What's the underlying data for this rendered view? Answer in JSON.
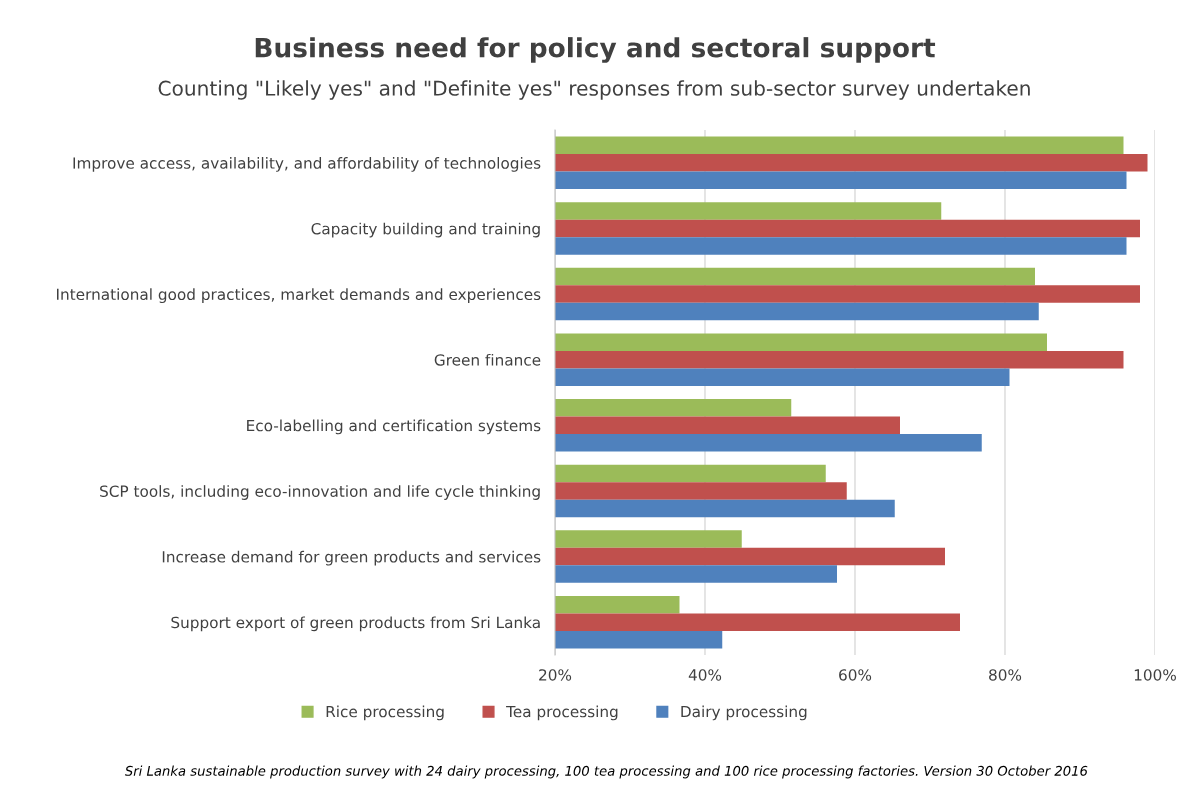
{
  "chart_data": {
    "type": "bar",
    "orientation": "horizontal",
    "title": "Business need for policy and sectoral support",
    "subtitle": "Counting \"Likely yes\" and \"Definite yes\" responses from sub-sector survey undertaken",
    "categories": [
      "Improve access, availability, and affordability of technologies",
      "Capacity building and training",
      "International good practices, market demands and experiences",
      "Green finance",
      "Eco-labelling and certification systems",
      "SCP tools, including eco-innovation and life cycle thinking",
      "Increase demand for green products and services",
      "Support export of green products from Sri Lanka"
    ],
    "series": [
      {
        "name": "Rice processing",
        "color": "#9bbb59",
        "values": [
          95.8,
          71.5,
          84.0,
          85.6,
          51.5,
          56.1,
          44.9,
          36.6
        ]
      },
      {
        "name": "Tea processing",
        "color": "#c0504d",
        "values": [
          99.0,
          98.0,
          98.0,
          95.8,
          66.0,
          58.9,
          72.0,
          74.0
        ]
      },
      {
        "name": "Dairy processing",
        "color": "#4f81bd",
        "values": [
          96.2,
          96.2,
          84.5,
          80.6,
          76.9,
          65.3,
          57.6,
          42.3
        ]
      }
    ],
    "xlim": [
      20,
      100
    ],
    "xticks": [
      {
        "value": 20,
        "label": "20%"
      },
      {
        "value": 40,
        "label": "40%"
      },
      {
        "value": 60,
        "label": "60%"
      },
      {
        "value": 80,
        "label": "80%"
      },
      {
        "value": 100,
        "label": "100%"
      }
    ],
    "grid": "x",
    "legend": "bottom",
    "annotations": [
      "Sri Lanka sustainable production survey with 24 dairy processing, 100 tea processing and 100 rice processing factories. Version 30 October 2016"
    ]
  }
}
